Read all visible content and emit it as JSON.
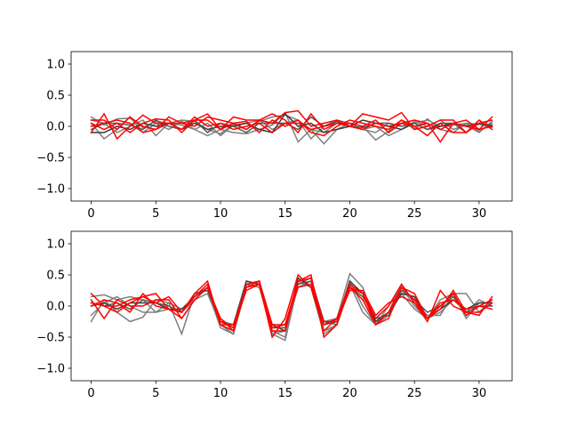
{
  "chart_data": [
    {
      "type": "line",
      "title": "",
      "xlabel": "",
      "ylabel": "",
      "xlim": [
        -1.55,
        32.55
      ],
      "ylim": [
        -1.2,
        1.2
      ],
      "xticks": [
        0,
        5,
        10,
        15,
        20,
        25,
        30
      ],
      "yticks": [
        -1.0,
        -0.5,
        0.0,
        0.5,
        1.0
      ],
      "xtick_labels": [
        "0",
        "5",
        "10",
        "15",
        "20",
        "25",
        "30"
      ],
      "ytick_labels": [
        "−1.0",
        "−0.5",
        "0.0",
        "0.5",
        "1.0"
      ],
      "grid": false,
      "x": [
        0,
        1,
        2,
        3,
        4,
        5,
        6,
        7,
        8,
        9,
        10,
        11,
        12,
        13,
        14,
        15,
        16,
        17,
        18,
        19,
        20,
        21,
        22,
        23,
        24,
        25,
        26,
        27,
        28,
        29,
        30,
        31
      ],
      "series": [
        {
          "color": "#7f7f7f",
          "values": [
            0.15,
            0.02,
            0.12,
            0.13,
            -0.02,
            0.08,
            0.05,
            0.1,
            0.08,
            -0.05,
            -0.12,
            0.03,
            -0.05,
            0.08,
            0.15,
            0.18,
            0.1,
            -0.05,
            -0.1,
            0.05,
            0.0,
            -0.05,
            -0.1,
            0.05,
            0.0,
            0.05,
            0.1,
            0.0,
            0.02,
            0.05,
            0.03,
            -0.02
          ]
        },
        {
          "color": "#7f7f7f",
          "values": [
            0.05,
            -0.2,
            -0.05,
            0.15,
            -0.1,
            0.05,
            -0.05,
            0.08,
            -0.05,
            -0.15,
            -0.05,
            -0.1,
            -0.12,
            -0.05,
            0.02,
            0.22,
            -0.25,
            -0.05,
            -0.28,
            -0.05,
            0.05,
            0.0,
            -0.22,
            -0.08,
            0.1,
            -0.05,
            0.12,
            -0.05,
            -0.1,
            0.05,
            -0.08,
            0.05
          ]
        },
        {
          "color": "#7f7f7f",
          "values": [
            0.1,
            0.05,
            -0.1,
            0.0,
            0.1,
            -0.15,
            0.05,
            0.02,
            -0.05,
            0.05,
            -0.15,
            0.02,
            0.05,
            0.1,
            -0.05,
            0.05,
            0.1,
            -0.2,
            0.0,
            0.1,
            0.05,
            -0.05,
            0.0,
            -0.15,
            -0.05,
            0.08,
            0.0,
            0.1,
            -0.05,
            0.02,
            -0.1,
            0.08
          ]
        },
        {
          "color": "#3a3a3a",
          "values": [
            -0.1,
            -0.1,
            0.0,
            -0.05,
            0.05,
            0.0,
            0.05,
            -0.05,
            0.05,
            -0.05,
            0.0,
            0.0,
            0.05,
            -0.05,
            -0.1,
            0.2,
            0.0,
            0.05,
            -0.1,
            -0.05,
            0.0,
            0.1,
            0.05,
            0.0,
            -0.05,
            0.05,
            -0.05,
            0.0,
            0.05,
            0.0,
            0.05,
            0.0
          ]
        },
        {
          "color": "#555555",
          "values": [
            -0.05,
            0.05,
            0.05,
            0.02,
            -0.05,
            0.1,
            0.0,
            -0.05,
            0.1,
            -0.1,
            0.05,
            0.0,
            -0.1,
            0.05,
            0.05,
            0.05,
            -0.05,
            0.15,
            0.0,
            0.08,
            0.0,
            -0.02,
            0.05,
            0.05,
            0.0,
            0.05,
            -0.05,
            0.05,
            0.05,
            -0.1,
            0.05,
            0.02
          ]
        },
        {
          "color": "#ff0000",
          "values": [
            -0.1,
            0.2,
            -0.2,
            0.0,
            0.18,
            0.05,
            0.05,
            0.05,
            0.1,
            0.2,
            -0.05,
            0.15,
            0.1,
            0.1,
            0.05,
            0.22,
            0.25,
            0.0,
            0.05,
            0.1,
            0.0,
            0.2,
            0.15,
            0.1,
            0.22,
            -0.05,
            0.0,
            0.1,
            0.1,
            -0.1,
            0.05,
            0.1
          ]
        },
        {
          "color": "#ff0000",
          "values": [
            0.05,
            -0.05,
            0.05,
            -0.1,
            0.05,
            0.12,
            0.1,
            -0.1,
            0.1,
            0.1,
            -0.05,
            0.05,
            0.08,
            -0.1,
            0.1,
            0.0,
            0.1,
            -0.1,
            -0.15,
            0.0,
            0.1,
            0.05,
            0.0,
            -0.05,
            0.1,
            0.0,
            -0.15,
            0.05,
            -0.1,
            -0.1,
            0.1,
            -0.05
          ]
        },
        {
          "color": "#ff0000",
          "values": [
            0.0,
            0.05,
            0.1,
            0.05,
            -0.1,
            -0.05,
            0.15,
            0.05,
            0.0,
            0.15,
            0.1,
            0.05,
            -0.05,
            0.1,
            0.2,
            0.1,
            -0.1,
            0.2,
            -0.05,
            0.05,
            0.05,
            0.0,
            0.1,
            -0.1,
            0.05,
            0.1,
            0.05,
            -0.25,
            0.05,
            0.1,
            -0.05,
            0.15
          ]
        },
        {
          "color": "#ff0000",
          "values": [
            0.1,
            0.1,
            -0.05,
            0.15,
            0.0,
            -0.05,
            0.05,
            -0.05,
            0.15,
            0.0,
            0.05,
            -0.05,
            0.0,
            0.05,
            -0.1,
            0.05,
            0.05,
            -0.05,
            0.0,
            0.05,
            0.0,
            -0.05,
            0.05,
            0.0,
            0.05,
            0.0,
            0.05,
            -0.05,
            0.05,
            0.0,
            -0.05,
            0.0
          ]
        }
      ]
    },
    {
      "type": "line",
      "title": "",
      "xlabel": "",
      "ylabel": "",
      "xlim": [
        -1.55,
        32.55
      ],
      "ylim": [
        -1.2,
        1.2
      ],
      "xticks": [
        0,
        5,
        10,
        15,
        20,
        25,
        30
      ],
      "yticks": [
        -1.0,
        -0.5,
        0.0,
        0.5,
        1.0
      ],
      "xtick_labels": [
        "0",
        "5",
        "10",
        "15",
        "20",
        "25",
        "30"
      ],
      "ytick_labels": [
        "−1.0",
        "−0.5",
        "0.0",
        "0.5",
        "1.0"
      ],
      "grid": false,
      "x": [
        0,
        1,
        2,
        3,
        4,
        5,
        6,
        7,
        8,
        9,
        10,
        11,
        12,
        13,
        14,
        15,
        16,
        17,
        18,
        19,
        20,
        21,
        22,
        23,
        24,
        25,
        26,
        27,
        28,
        29,
        30,
        31
      ],
      "series": [
        {
          "color": "#7f7f7f",
          "values": [
            -0.25,
            0.1,
            -0.1,
            -0.25,
            -0.18,
            0.1,
            0.05,
            -0.45,
            0.2,
            0.25,
            -0.35,
            -0.45,
            0.4,
            0.35,
            -0.45,
            -0.55,
            0.35,
            0.45,
            -0.25,
            -0.2,
            0.52,
            0.3,
            -0.25,
            -0.1,
            0.35,
            0.05,
            -0.15,
            -0.15,
            0.2,
            -0.2,
            0.05,
            0.05
          ]
        },
        {
          "color": "#7f7f7f",
          "values": [
            0.15,
            0.18,
            0.1,
            0.15,
            0.1,
            -0.1,
            -0.05,
            -0.1,
            0.1,
            0.2,
            -0.3,
            -0.45,
            0.3,
            0.4,
            -0.45,
            -0.4,
            0.3,
            0.4,
            -0.4,
            -0.3,
            0.4,
            0.0,
            -0.3,
            0.0,
            0.3,
            0.0,
            -0.2,
            0.1,
            0.2,
            0.2,
            -0.1,
            0.1
          ]
        },
        {
          "color": "#7f7f7f",
          "values": [
            -0.15,
            0.05,
            0.15,
            0.0,
            -0.1,
            -0.1,
            0.05,
            -0.05,
            0.1,
            0.3,
            -0.2,
            -0.35,
            0.35,
            0.3,
            -0.4,
            -0.5,
            0.4,
            0.3,
            -0.45,
            -0.3,
            0.35,
            -0.1,
            -0.3,
            -0.15,
            0.2,
            -0.05,
            -0.2,
            -0.1,
            0.1,
            -0.1,
            0.1,
            0.0
          ]
        },
        {
          "color": "#3a3a3a",
          "values": [
            0.0,
            0.05,
            -0.05,
            0.05,
            0.05,
            0.05,
            -0.05,
            -0.05,
            0.15,
            0.3,
            -0.25,
            -0.3,
            0.4,
            0.35,
            -0.3,
            -0.4,
            0.45,
            0.3,
            -0.3,
            -0.25,
            0.4,
            0.2,
            -0.25,
            -0.1,
            0.2,
            0.15,
            -0.2,
            -0.05,
            0.1,
            -0.05,
            0.05,
            0.05
          ]
        },
        {
          "color": "#555555",
          "values": [
            0.05,
            0.0,
            0.05,
            -0.05,
            0.1,
            0.05,
            0.0,
            -0.1,
            0.2,
            0.25,
            -0.25,
            -0.3,
            0.35,
            0.4,
            -0.35,
            -0.35,
            0.35,
            0.4,
            -0.25,
            -0.3,
            0.3,
            0.15,
            -0.2,
            -0.15,
            0.25,
            0.1,
            -0.1,
            0.0,
            0.15,
            -0.1,
            0.0,
            0.0
          ]
        },
        {
          "color": "#ff0000",
          "values": [
            0.2,
            0.0,
            -0.1,
            0.05,
            0.15,
            0.2,
            -0.05,
            -0.1,
            0.2,
            0.4,
            -0.3,
            -0.4,
            0.3,
            0.35,
            -0.5,
            -0.2,
            0.5,
            0.3,
            -0.4,
            -0.2,
            0.35,
            0.2,
            -0.2,
            0.0,
            0.35,
            0.05,
            -0.25,
            0.25,
            0.0,
            -0.1,
            -0.15,
            0.15
          ]
        },
        {
          "color": "#ff0000",
          "values": [
            0.1,
            -0.2,
            0.1,
            0.0,
            0.0,
            0.1,
            0.1,
            -0.2,
            0.1,
            0.3,
            -0.2,
            -0.4,
            0.35,
            0.4,
            -0.3,
            -0.3,
            0.4,
            0.45,
            -0.3,
            -0.2,
            0.3,
            0.1,
            -0.3,
            -0.1,
            0.3,
            0.2,
            -0.2,
            0.0,
            0.2,
            -0.15,
            0.0,
            0.1
          ]
        },
        {
          "color": "#ff0000",
          "values": [
            0.0,
            0.1,
            0.05,
            -0.1,
            0.2,
            0.0,
            -0.05,
            -0.2,
            0.1,
            0.3,
            -0.3,
            -0.3,
            0.3,
            0.4,
            -0.4,
            -0.4,
            0.4,
            0.5,
            -0.5,
            -0.3,
            0.3,
            0.2,
            -0.3,
            -0.2,
            0.3,
            0.1,
            -0.2,
            -0.05,
            0.25,
            -0.1,
            -0.1,
            0.05
          ]
        },
        {
          "color": "#ff0000",
          "values": [
            0.05,
            0.0,
            0.0,
            0.1,
            0.15,
            0.05,
            0.15,
            -0.1,
            0.15,
            0.35,
            -0.25,
            -0.35,
            0.25,
            0.35,
            -0.35,
            -0.3,
            0.3,
            0.35,
            -0.25,
            -0.25,
            0.25,
            0.25,
            -0.15,
            0.05,
            0.15,
            0.05,
            -0.2,
            0.05,
            0.1,
            -0.05,
            0.0,
            -0.05
          ]
        }
      ]
    }
  ]
}
